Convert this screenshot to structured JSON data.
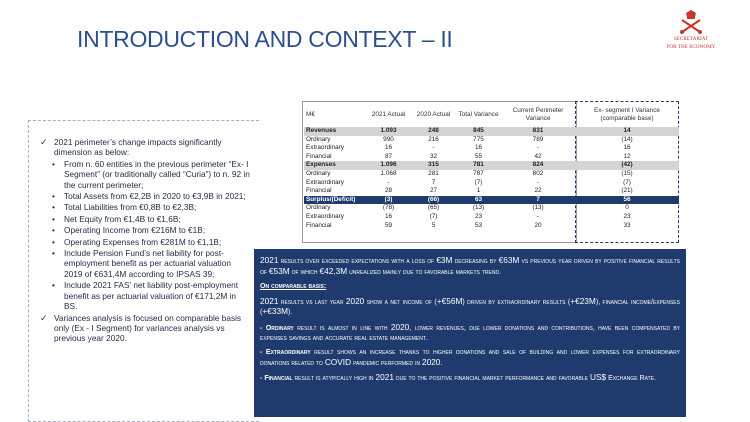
{
  "slide": {
    "title": "INTRODUCTION AND CONTEXT  – II",
    "logo_text_line1": "SECRETARIAT",
    "logo_text_line2": "FOR THE ECONOMY"
  },
  "left_bullets": {
    "item1": "2021 perimeter’s change impacts significantly dimension as below:",
    "sub1": "From n. 60 entities  in the previous perimeter “Ex- I Segment” (or traditionally called “Curia”) to n. 92 in the current perimeter;",
    "sub2": "Total Assets from  €2,2B in 2020 to €3,9B in 2021;",
    "sub3": "Total Liabilities from €0,8B to €2,3B;",
    "sub4": "Net Equity from €1,4B to €1,6B;",
    "sub5": "Operating Income from €216M to €1B;",
    "sub6": "Operating Expenses from €281M to €1,1B;",
    "sub7": "Include Pension Fund’s net liability for post-employment benefit as per actuarial valuation 2019 of €631,4M according to IPSAS 39;",
    "sub8": "Include 2021 FAS’ net liability post-employment benefit as per actuarial valuation of €171,2M in BS.",
    "item2": "Variances analysis is focused on comparable basis  only (Ex - I Segment) for variances analysis vs previous year 2020."
  },
  "table": {
    "headers": [
      "M€",
      "2021 Actual",
      "2020 Actual",
      "Total Variance",
      "Current Perimeter Variance",
      "Ex- segment I Variance (comparable base)"
    ],
    "rows": [
      [
        "Revenues",
        "1.093",
        "248",
        "845",
        "831",
        "14"
      ],
      [
        "Ordinary",
        "990",
        "216",
        "775",
        "789",
        "(14)"
      ],
      [
        "Extraordinary",
        "16",
        "-",
        "16",
        "-",
        "16"
      ],
      [
        "Financial",
        "87",
        "32",
        "55",
        "42",
        "12"
      ],
      [
        "Expenses",
        "1.096",
        "315",
        "781",
        "824",
        "(42)"
      ],
      [
        "Ordinary",
        "1.068",
        "281",
        "787",
        "802",
        "(15)"
      ],
      [
        "Extraordinary",
        "-",
        "7",
        "(7)",
        "-",
        "(7)"
      ],
      [
        "Financial",
        "28",
        "27",
        "1",
        "22",
        "(21)"
      ],
      [
        "Surplus/(Deficit)",
        "(3)",
        "(66)",
        "63",
        "7",
        "56"
      ],
      [
        "Ordinary",
        "(78)",
        "(65)",
        "(13)",
        "(13)",
        "0"
      ],
      [
        "Extraordinary",
        "16",
        "(7)",
        "23",
        "-",
        "23"
      ],
      [
        "Financial",
        "59",
        "5",
        "53",
        "20",
        "33"
      ]
    ]
  },
  "commentary": {
    "p1a": "2021",
    "p1b": " results over exceeded expectations with a loss of ",
    "p1c": "€3M",
    "p1d": "  decreasing by ",
    "p1e": "€63M",
    "p1f": " vs previous year driven by positive financial results of ",
    "p1g": "€53M",
    "p1h": " of which ",
    "p1i": "€42,3M",
    "p1j": " unrealized mainly due to favorable markets trend.",
    "heading": "On comparable basis:",
    "p2a": "2021",
    "p2b": " results vs last year ",
    "p2c": "2020",
    "p2d": " show a net income of (",
    "p2e": "+€56M",
    "p2f": ") driven by extraordinary results (",
    "p2g": "+€23M",
    "p2h": "), financial income/expenses (",
    "p2i": "+€33M",
    "p2j": ").",
    "p3a": "- Ordinary",
    "p3b": " result is almost in line with ",
    "p3c": "2020",
    "p3d": ", lower revenues, due lower donations and contributions, have been compensated by expenses savings and  accurate real estate management.",
    "p4a": "- Extraordinary",
    "p4b": " result shows an increase thanks to higher donations and sale of building and lower expenses for extraordinary donations related to ",
    "p4c": "COVID",
    "p4d": " pandemic performed in ",
    "p4e": "2020",
    "p4f": ".",
    "p5a": "- Financial",
    "p5b": " result is atypically high in ",
    "p5c": "2021",
    "p5d": " due to the positive financial market performance and favorable ",
    "p5e": "US$",
    "p5f": " Exchange Rate."
  },
  "colors": {
    "title": "#2e4f8f",
    "navy": "#1f3b6e",
    "logo": "#c0392b"
  }
}
